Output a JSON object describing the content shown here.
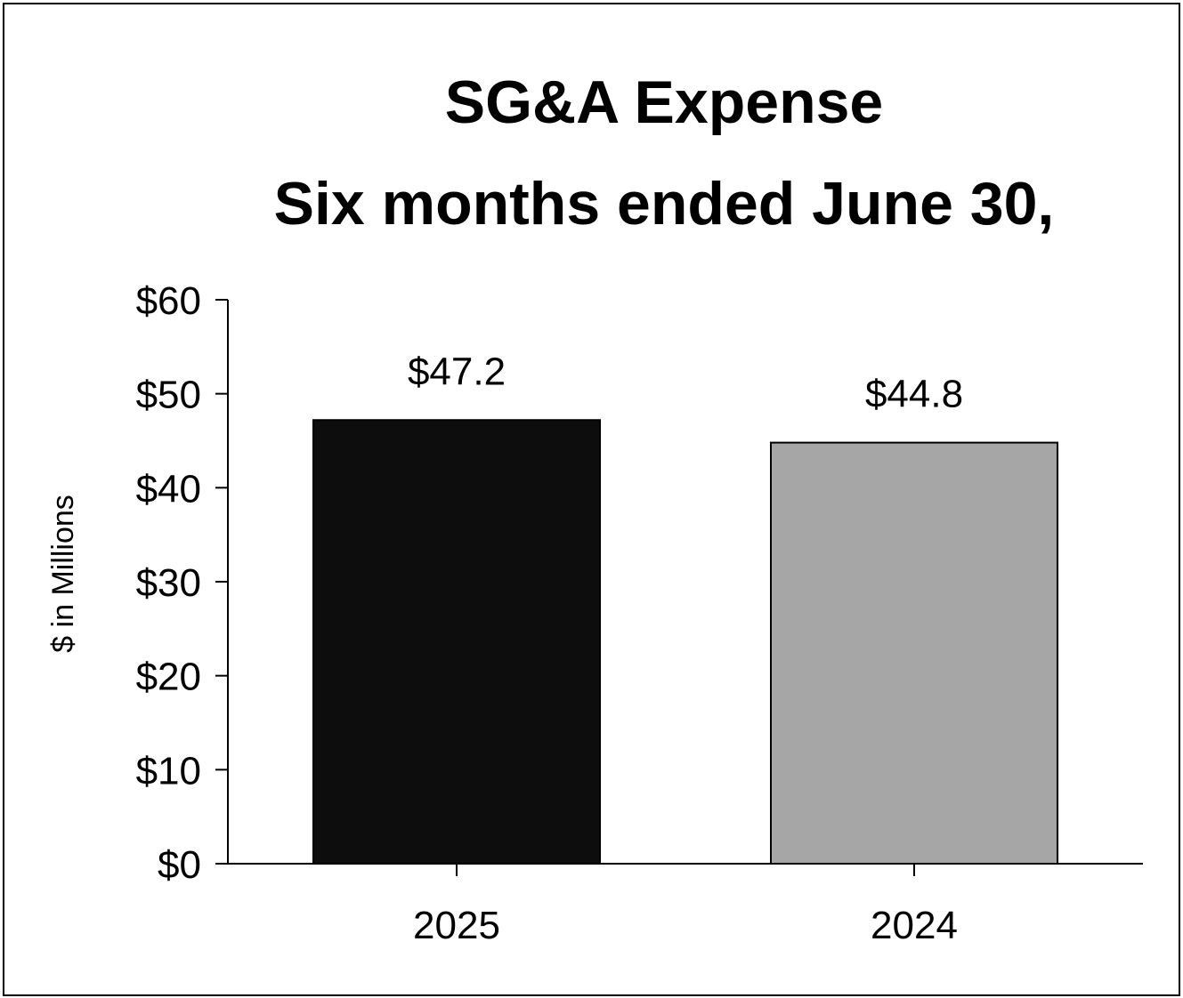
{
  "chart_data": {
    "type": "bar",
    "title": "SG&A Expense",
    "subtitle": "Six months ended June 30,",
    "xlabel": "",
    "ylabel": "$ in Millions",
    "categories": [
      "2025",
      "2024"
    ],
    "values": [
      47.2,
      44.8
    ],
    "data_labels": [
      "$47.2",
      "$44.8"
    ],
    "bar_colors": [
      "#0d0d0d",
      "#a6a6a6"
    ],
    "ylim": [
      0,
      60
    ],
    "y_ticks": [
      0,
      10,
      20,
      30,
      40,
      50,
      60
    ],
    "y_tick_labels": [
      "$0",
      "$10",
      "$20",
      "$30",
      "$40",
      "$50",
      "$60"
    ],
    "grid": false,
    "legend": "none"
  }
}
